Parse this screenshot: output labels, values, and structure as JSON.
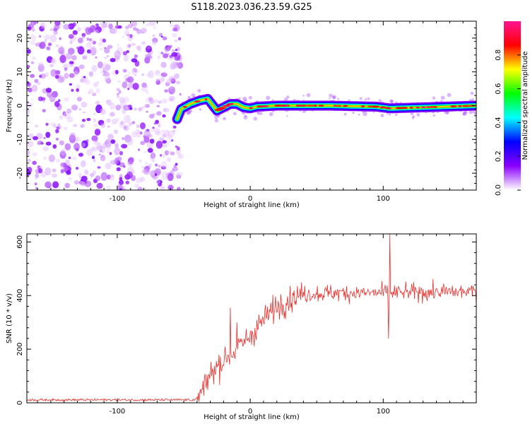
{
  "title": "S118.2023.036.23.59.G25",
  "chart_data": [
    {
      "type": "heatmap",
      "xlabel": "Height of straight line (km)",
      "ylabel": "Frequency (Hz)",
      "xlim": [
        -168,
        170
      ],
      "ylim": [
        -25,
        25
      ],
      "x_ticks": [
        -100,
        0,
        100
      ],
      "y_ticks": [
        -20,
        -10,
        0,
        10,
        20
      ],
      "colorbar": {
        "label": "Normalized spectral amplitude",
        "range": [
          0.0,
          1.0
        ],
        "ticks": [
          0.0,
          0.2,
          0.4,
          0.6,
          0.8
        ],
        "colors": [
          "#ffffff",
          "#8b00ff",
          "#0000ff",
          "#00ffff",
          "#00ff00",
          "#ffff00",
          "#ff0000",
          "#ff1493"
        ]
      },
      "noise_region_x": [
        -168,
        -55
      ],
      "signal_start_x": -55,
      "signal_track": [
        {
          "x": -55,
          "f": -4
        },
        {
          "x": -52,
          "f": -1
        },
        {
          "x": -45,
          "f": 0.5
        },
        {
          "x": -38,
          "f": 1.5
        },
        {
          "x": -32,
          "f": 2
        },
        {
          "x": -28,
          "f": 0
        },
        {
          "x": -25,
          "f": -1.5
        },
        {
          "x": -20,
          "f": -0.5
        },
        {
          "x": -15,
          "f": 0.5
        },
        {
          "x": -10,
          "f": 0.5
        },
        {
          "x": -5,
          "f": -0.5
        },
        {
          "x": 0,
          "f": -0.8
        },
        {
          "x": 5,
          "f": -0.3
        },
        {
          "x": 20,
          "f": 0
        },
        {
          "x": 60,
          "f": 0
        },
        {
          "x": 95,
          "f": -0.3
        },
        {
          "x": 105,
          "f": -0.8
        },
        {
          "x": 130,
          "f": -0.5
        },
        {
          "x": 170,
          "f": 0
        }
      ]
    },
    {
      "type": "line",
      "xlabel": "Height of straight line (km)",
      "ylabel": "SNR (10 * v/v)",
      "xlim": [
        -168,
        170
      ],
      "ylim": [
        0,
        630
      ],
      "x_ticks": [
        -100,
        0,
        100
      ],
      "y_ticks": [
        0,
        200,
        400,
        600
      ],
      "color": "#e8302c",
      "envelope": [
        {
          "x": -168,
          "y": 10
        },
        {
          "x": -40,
          "y": 10
        },
        {
          "x": -35,
          "y": 50
        },
        {
          "x": -30,
          "y": 110
        },
        {
          "x": -20,
          "y": 160
        },
        {
          "x": -10,
          "y": 200
        },
        {
          "x": 0,
          "y": 250
        },
        {
          "x": 10,
          "y": 310
        },
        {
          "x": 20,
          "y": 360
        },
        {
          "x": 30,
          "y": 390
        },
        {
          "x": 40,
          "y": 405
        },
        {
          "x": 60,
          "y": 410
        },
        {
          "x": 100,
          "y": 410
        },
        {
          "x": 170,
          "y": 415
        }
      ],
      "spikes": [
        {
          "x": -15,
          "y": 355
        },
        {
          "x": -10,
          "y": 300
        },
        {
          "x": 105,
          "y": 630
        },
        {
          "x": 104,
          "y": 240
        }
      ]
    }
  ]
}
